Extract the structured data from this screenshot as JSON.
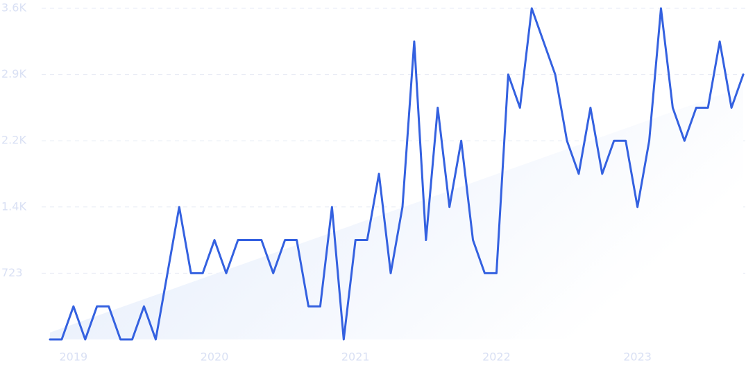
{
  "chart_data": {
    "type": "line",
    "categories": [
      null,
      null,
      "2019",
      null,
      null,
      null,
      null,
      null,
      null,
      null,
      null,
      null,
      null,
      null,
      "2020",
      null,
      null,
      null,
      null,
      null,
      null,
      null,
      null,
      null,
      null,
      null,
      "2021",
      null,
      null,
      null,
      null,
      null,
      null,
      null,
      null,
      null,
      null,
      null,
      "2022",
      null,
      null,
      null,
      null,
      null,
      null,
      null,
      null,
      null,
      null,
      null,
      "2023",
      null,
      null,
      null,
      null,
      null,
      null,
      null,
      null,
      null
    ],
    "values": [
      0,
      0,
      361,
      0,
      361,
      361,
      0,
      0,
      361,
      0,
      723,
      1446,
      723,
      723,
      1085,
      723,
      1085,
      1085,
      1085,
      723,
      1085,
      1085,
      361,
      361,
      1446,
      0,
      1085,
      1085,
      1808,
      723,
      1446,
      3253,
      1085,
      2530,
      1446,
      2169,
      1085,
      723,
      723,
      2892,
      2530,
      3615,
      3253,
      2892,
      2169,
      1808,
      2530,
      1808,
      2169,
      2169,
      1446,
      2169,
      3615,
      2530,
      2169,
      2530,
      2530,
      3253,
      2530,
      2892
    ],
    "color": "#3461e0",
    "trend": [
      76,
      2760
    ],
    "trend_color": "#e2ebfb",
    "ylim": [
      0,
      3615
    ],
    "yticks": [
      723,
      {
        "value": 1446,
        "label": "1.4K"
      },
      {
        "value": 2169,
        "label": "2.2K"
      },
      {
        "value": 2892,
        "label": "2.9K"
      },
      {
        "value": 3615,
        "label": "3.6K"
      }
    ],
    "grid": true
  }
}
